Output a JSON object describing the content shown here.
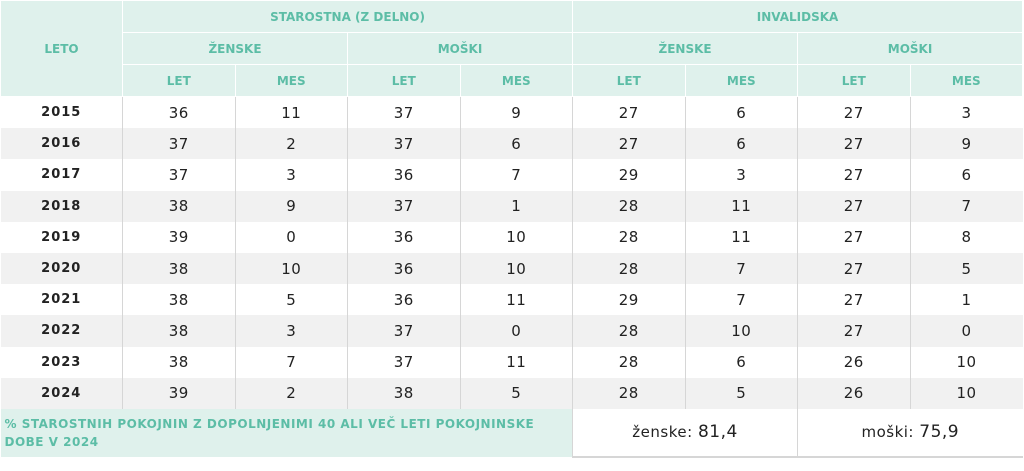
{
  "header": {
    "leto": "LETO",
    "groups": [
      "STAROSTNA (Z DELNO)",
      "INVALIDSKA"
    ],
    "sexes": [
      "ŽENSKE",
      "MOŠKI",
      "ŽENSKE",
      "MOŠKI"
    ],
    "units": [
      "LET",
      "MES",
      "LET",
      "MES",
      "LET",
      "MES",
      "LET",
      "MES"
    ]
  },
  "rows": [
    {
      "year": "2015",
      "values": [
        "36",
        "11",
        "37",
        "9",
        "27",
        "6",
        "27",
        "3"
      ]
    },
    {
      "year": "2016",
      "values": [
        "37",
        "2",
        "37",
        "6",
        "27",
        "6",
        "27",
        "9"
      ]
    },
    {
      "year": "2017",
      "values": [
        "37",
        "3",
        "36",
        "7",
        "29",
        "3",
        "27",
        "6"
      ]
    },
    {
      "year": "2018",
      "values": [
        "38",
        "9",
        "37",
        "1",
        "28",
        "11",
        "27",
        "7"
      ]
    },
    {
      "year": "2019",
      "values": [
        "39",
        "0",
        "36",
        "10",
        "28",
        "11",
        "27",
        "8"
      ]
    },
    {
      "year": "2020",
      "values": [
        "38",
        "10",
        "36",
        "10",
        "28",
        "7",
        "27",
        "5"
      ]
    },
    {
      "year": "2021",
      "values": [
        "38",
        "5",
        "36",
        "11",
        "29",
        "7",
        "27",
        "1"
      ]
    },
    {
      "year": "2022",
      "values": [
        "38",
        "3",
        "37",
        "0",
        "28",
        "10",
        "27",
        "0"
      ]
    },
    {
      "year": "2023",
      "values": [
        "38",
        "7",
        "37",
        "11",
        "28",
        "6",
        "26",
        "10"
      ]
    },
    {
      "year": "2024",
      "values": [
        "39",
        "2",
        "38",
        "5",
        "28",
        "5",
        "26",
        "10"
      ]
    }
  ],
  "footer": {
    "label": "% STAROSTNIH POKOJNIN Z DOPOLNJENIMI 40 ALI VEČ LETI POKOJNINSKE DOBE V 2024",
    "women_label": "ženske:",
    "women_value": "81,4",
    "men_label": "moški:",
    "men_value": "75,9"
  },
  "colors": {
    "header_bg": "#dff1ec",
    "header_text": "#5cbda6",
    "alt_row": "#f1f1f1"
  }
}
